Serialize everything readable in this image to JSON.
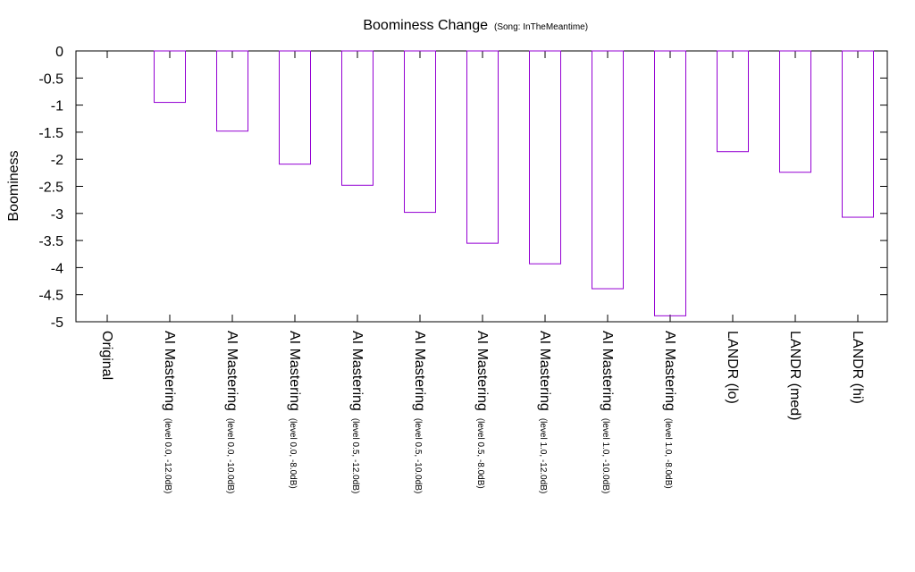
{
  "chart_data": {
    "type": "bar",
    "title": "Boominess Change",
    "subtitle": "(Song: InTheMeantime)",
    "xlabel": "",
    "ylabel": "Boominess",
    "ylim": [
      -5,
      0
    ],
    "yticks": [
      "0",
      "-0.5",
      "-1",
      "-1.5",
      "-2",
      "-2.5",
      "-3",
      "-3.5",
      "-4",
      "-4.5",
      "-5"
    ],
    "grid": false,
    "bar_color": "#9400d3",
    "categories": [
      {
        "main": "Original",
        "sub": ""
      },
      {
        "main": "AI Mastering",
        "sub": "(level 0.0, -12.0dB)"
      },
      {
        "main": "AI Mastering",
        "sub": "(level 0.0, -10.0dB)"
      },
      {
        "main": "AI Mastering",
        "sub": "(level 0.0, -8.0dB)"
      },
      {
        "main": "AI Mastering",
        "sub": "(level 0.5, -12.0dB)"
      },
      {
        "main": "AI Mastering",
        "sub": "(level 0.5, -10.0dB)"
      },
      {
        "main": "AI Mastering",
        "sub": "(level 0.5, -8.0dB)"
      },
      {
        "main": "AI Mastering",
        "sub": "(level 1.0, -12.0dB)"
      },
      {
        "main": "AI Mastering",
        "sub": "(level 1.0, -10.0dB)"
      },
      {
        "main": "AI Mastering",
        "sub": "(level 1.0, -8.0dB)"
      },
      {
        "main": "LANDR (lo)",
        "sub": ""
      },
      {
        "main": "LANDR (med)",
        "sub": ""
      },
      {
        "main": "LANDR (hi)",
        "sub": ""
      }
    ],
    "values": [
      0,
      -0.95,
      -1.48,
      -2.09,
      -2.48,
      -2.98,
      -3.55,
      -3.93,
      -4.39,
      -4.89,
      -1.86,
      -2.24,
      -3.07
    ]
  }
}
